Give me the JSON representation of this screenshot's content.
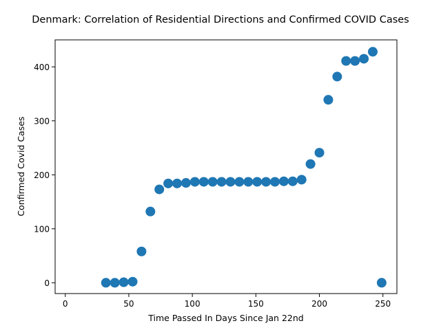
{
  "chart_data": {
    "type": "scatter",
    "title": "Denmark: Correlation of Residential Directions and Confirmed COVID Cases",
    "xlabel": "Time Passed In Days Since Jan 22nd",
    "ylabel": "Confirmed Covid Cases",
    "xlim": [
      -8,
      261
    ],
    "ylim": [
      -20,
      450
    ],
    "xticks": [
      0,
      50,
      100,
      150,
      200,
      250
    ],
    "yticks": [
      0,
      100,
      200,
      300,
      400
    ],
    "grid": false,
    "color": "#1f77b4",
    "x": [
      32,
      39,
      46,
      53,
      60,
      67,
      74,
      81,
      88,
      95,
      102,
      109,
      116,
      123,
      130,
      137,
      144,
      151,
      158,
      165,
      172,
      179,
      186,
      193,
      200,
      207,
      214,
      221,
      228,
      235,
      242,
      249
    ],
    "y": [
      0,
      0,
      1,
      2,
      58,
      132,
      173,
      184,
      184,
      185,
      187,
      187,
      187,
      187,
      187,
      187,
      187,
      187,
      187,
      187,
      188,
      188,
      191,
      220,
      241,
      339,
      382,
      411,
      411,
      415,
      428,
      0
    ]
  }
}
